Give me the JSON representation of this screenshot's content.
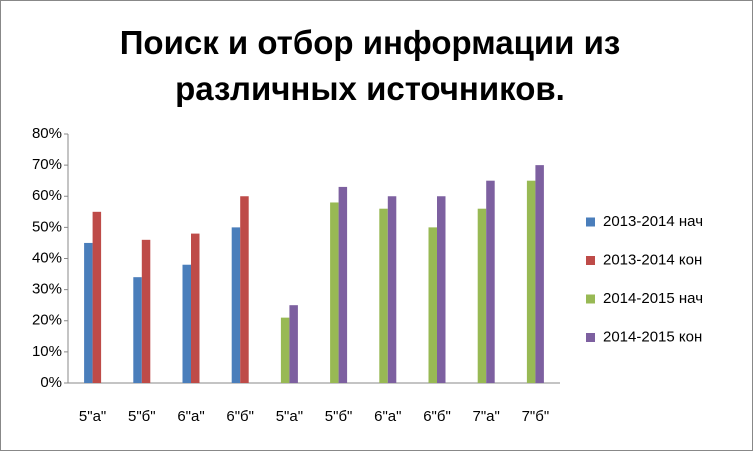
{
  "chart_data": {
    "type": "bar",
    "title": "Поиск и отбор информации из различных источников.",
    "categories": [
      "5\"а\"",
      "5\"б\"",
      "6\"а\"",
      "6\"б\"",
      "5\"а\"",
      "5\"б\"",
      "6\"а\"",
      "6\"б\"",
      "7\"а\"",
      "7\"б\""
    ],
    "series": [
      {
        "name": "2013-2014 нач",
        "color": "#4a7ebb",
        "values": [
          45,
          34,
          38,
          50,
          null,
          null,
          null,
          null,
          null,
          null
        ]
      },
      {
        "name": "2013-2014 кон",
        "color": "#be4b48",
        "values": [
          55,
          46,
          48,
          60,
          null,
          null,
          null,
          null,
          null,
          null
        ]
      },
      {
        "name": "2014-2015 нач",
        "color": "#98b954",
        "values": [
          null,
          null,
          null,
          null,
          21,
          58,
          56,
          50,
          56,
          65
        ]
      },
      {
        "name": "2014-2015 кон",
        "color": "#7d60a0",
        "values": [
          null,
          null,
          null,
          null,
          25,
          63,
          60,
          60,
          65,
          70
        ]
      }
    ],
    "ylim": [
      0,
      80
    ],
    "yticks": [
      {
        "value": 0,
        "label": "0%"
      },
      {
        "value": 10,
        "label": "10%"
      },
      {
        "value": 20,
        "label": "20%"
      },
      {
        "value": 30,
        "label": "30%"
      },
      {
        "value": 40,
        "label": "40%"
      },
      {
        "value": 50,
        "label": "50%"
      },
      {
        "value": 60,
        "label": "60%"
      },
      {
        "value": 70,
        "label": "70%"
      },
      {
        "value": 80,
        "label": "80%"
      }
    ],
    "legend": "right"
  }
}
